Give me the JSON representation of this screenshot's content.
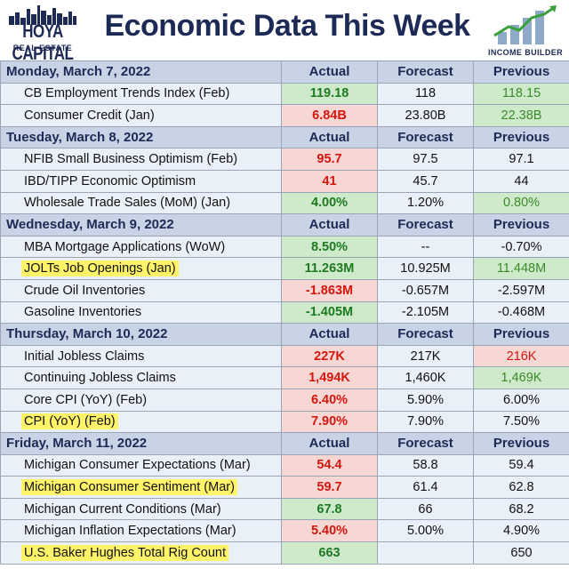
{
  "header": {
    "brand_line1": "HOYA CAPITAL",
    "brand_line2": "REAL ESTATE",
    "title": "Economic Data This Week",
    "right_logo_text": "INCOME BUILDER"
  },
  "columns": {
    "actual": "Actual",
    "forecast": "Forecast",
    "previous": "Previous"
  },
  "days": [
    {
      "label": "Monday, March 7, 2022",
      "rows": [
        {
          "name": "CB Employment Trends Index (Feb)",
          "highlight": false,
          "actual": "119.18",
          "actual_status": "good",
          "forecast": "118",
          "previous": "118.15",
          "previous_status": "good"
        },
        {
          "name": "Consumer Credit (Jan)",
          "highlight": false,
          "actual": "6.84B",
          "actual_status": "bad",
          "forecast": "23.80B",
          "previous": "22.38B",
          "previous_status": "good"
        }
      ]
    },
    {
      "label": "Tuesday, March 8, 2022",
      "rows": [
        {
          "name": "NFIB Small Business Optimism (Feb)",
          "highlight": false,
          "actual": "95.7",
          "actual_status": "bad",
          "forecast": "97.5",
          "previous": "97.1",
          "previous_status": "none"
        },
        {
          "name": "IBD/TIPP Economic Optimism",
          "highlight": false,
          "actual": "41",
          "actual_status": "bad",
          "forecast": "45.7",
          "previous": "44",
          "previous_status": "none"
        },
        {
          "name": "Wholesale Trade Sales (MoM) (Jan)",
          "highlight": false,
          "actual": "4.00%",
          "actual_status": "good",
          "forecast": "1.20%",
          "previous": "0.80%",
          "previous_status": "good"
        }
      ]
    },
    {
      "label": "Wednesday, March 9, 2022",
      "rows": [
        {
          "name": "MBA Mortgage Applications (WoW)",
          "highlight": false,
          "actual": "8.50%",
          "actual_status": "good",
          "forecast": "--",
          "previous": "-0.70%",
          "previous_status": "none"
        },
        {
          "name": "JOLTs Job Openings (Jan)",
          "highlight": true,
          "actual": "11.263M",
          "actual_status": "good",
          "forecast": "10.925M",
          "previous": "11.448M",
          "previous_status": "good"
        },
        {
          "name": "Crude Oil Inventories",
          "highlight": false,
          "actual": "-1.863M",
          "actual_status": "bad",
          "forecast": "-0.657M",
          "previous": "-2.597M",
          "previous_status": "none"
        },
        {
          "name": "Gasoline Inventories",
          "highlight": false,
          "actual": "-1.405M",
          "actual_status": "good",
          "forecast": "-2.105M",
          "previous": "-0.468M",
          "previous_status": "none"
        }
      ]
    },
    {
      "label": "Thursday, March 10, 2022",
      "rows": [
        {
          "name": "Initial Jobless Claims",
          "highlight": false,
          "actual": "227K",
          "actual_status": "bad",
          "forecast": "217K",
          "previous": "216K",
          "previous_status": "bad"
        },
        {
          "name": "Continuing Jobless Claims",
          "highlight": false,
          "actual": "1,494K",
          "actual_status": "bad",
          "forecast": "1,460K",
          "previous": "1,469K",
          "previous_status": "good"
        },
        {
          "name": "Core CPI (YoY) (Feb)",
          "highlight": false,
          "actual": "6.40%",
          "actual_status": "bad",
          "forecast": "5.90%",
          "previous": "6.00%",
          "previous_status": "none"
        },
        {
          "name": "CPI (YoY) (Feb)",
          "highlight": true,
          "actual": "7.90%",
          "actual_status": "bad",
          "forecast": "7.90%",
          "previous": "7.50%",
          "previous_status": "none"
        }
      ]
    },
    {
      "label": "Friday, March 11, 2022",
      "rows": [
        {
          "name": "Michigan Consumer Expectations (Mar)",
          "highlight": false,
          "actual": "54.4",
          "actual_status": "bad",
          "forecast": "58.8",
          "previous": "59.4",
          "previous_status": "none"
        },
        {
          "name": "Michigan Consumer Sentiment (Mar)",
          "highlight": true,
          "actual": "59.7",
          "actual_status": "bad",
          "forecast": "61.4",
          "previous": "62.8",
          "previous_status": "none"
        },
        {
          "name": "Michigan Current Conditions (Mar)",
          "highlight": false,
          "actual": "67.8",
          "actual_status": "good",
          "forecast": "66",
          "previous": "68.2",
          "previous_status": "none"
        },
        {
          "name": "Michigan Inflation Expectations (Mar)",
          "highlight": false,
          "actual": "5.40%",
          "actual_status": "bad",
          "forecast": "5.00%",
          "previous": "4.90%",
          "previous_status": "none"
        },
        {
          "name": "U.S. Baker Hughes Total Rig Count",
          "highlight": true,
          "actual": "663",
          "actual_status": "good",
          "forecast": "",
          "previous": "650",
          "previous_status": "none"
        }
      ]
    }
  ],
  "colors": {
    "navy": "#1d2a56",
    "good_bg": "#cfeacb",
    "bad_bg": "#f6d7d4",
    "good_text": "#1e7a22",
    "bad_text": "#d4160f",
    "highlight": "#fff36a"
  },
  "icons": {
    "left_logo": "city-skyline-icon",
    "right_logo": "growth-bars-icon"
  }
}
